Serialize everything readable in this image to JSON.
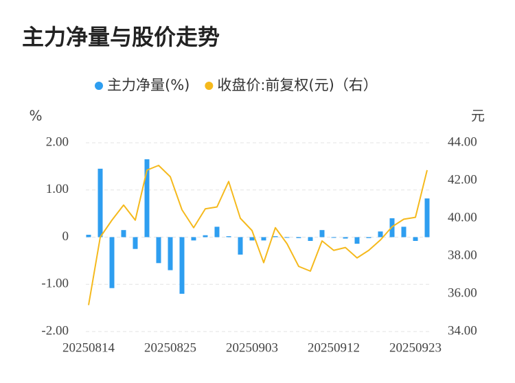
{
  "chart_data": {
    "type": "bar-line",
    "title": "主力净量与股价走势",
    "y_unit": "%",
    "y2_unit": "元",
    "categories": [
      "20250814",
      null,
      null,
      null,
      null,
      null,
      null,
      "20250825",
      null,
      null,
      null,
      null,
      null,
      null,
      "20250903",
      null,
      null,
      null,
      null,
      null,
      null,
      "20250912",
      null,
      null,
      null,
      null,
      null,
      null,
      "20250923",
      null
    ],
    "series": [
      {
        "name": "主力净量(%)",
        "type": "bar",
        "color": "#2e9ef0",
        "values": [
          0.05,
          1.45,
          -1.08,
          0.15,
          -0.25,
          1.65,
          -0.55,
          -0.7,
          -1.2,
          -0.07,
          0.04,
          0.22,
          0.02,
          -0.37,
          -0.07,
          -0.07,
          0.02,
          -0.01,
          -0.02,
          -0.08,
          0.15,
          -0.01,
          -0.03,
          -0.14,
          -0.02,
          0.12,
          0.4,
          0.22,
          -0.08,
          0.82
        ]
      },
      {
        "name": "收盘价:前复权(元)（右）",
        "type": "line",
        "axis": "y2",
        "color": "#f5b91c",
        "values": [
          35.4,
          39.0,
          39.9,
          40.7,
          39.9,
          42.55,
          42.8,
          42.2,
          40.45,
          39.5,
          40.5,
          40.6,
          41.95,
          40.0,
          39.35,
          37.65,
          39.5,
          38.65,
          37.45,
          37.2,
          38.8,
          38.3,
          38.45,
          37.9,
          38.3,
          38.85,
          39.55,
          39.95,
          40.05,
          42.55
        ]
      }
    ],
    "ylim": [
      -2,
      2
    ],
    "yticks": [
      {
        "value": 2,
        "label": "2.00"
      },
      {
        "value": 1,
        "label": "1.00"
      },
      0,
      {
        "value": -1,
        "label": "-1.00"
      },
      {
        "value": -2,
        "label": "-2.00"
      }
    ],
    "y2lim": [
      34,
      44
    ],
    "y2ticks": [
      {
        "value": 44,
        "label": "44.00"
      },
      {
        "value": 42,
        "label": "42.00"
      },
      {
        "value": 40,
        "label": "40.00"
      },
      {
        "value": 38,
        "label": "38.00"
      },
      {
        "value": 36,
        "label": "36.00"
      },
      {
        "value": 34,
        "label": "34.00"
      }
    ],
    "grid": true
  }
}
